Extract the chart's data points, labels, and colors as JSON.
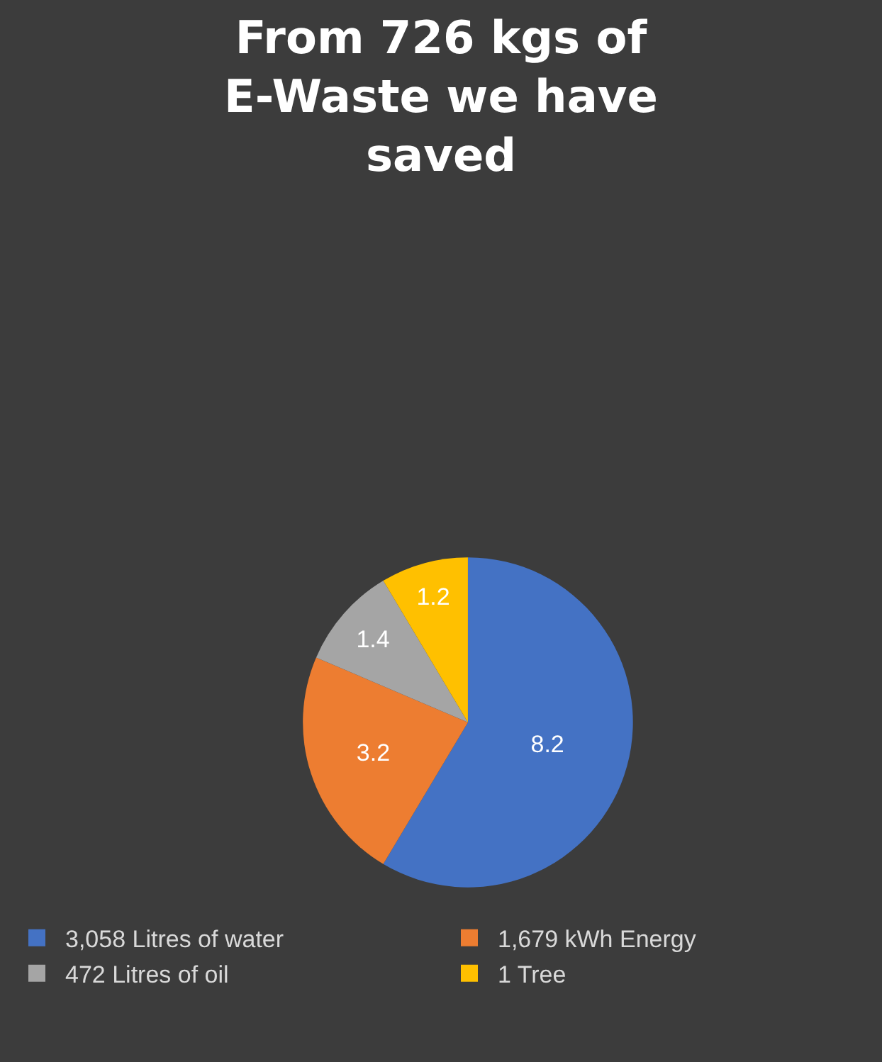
{
  "chart_data": {
    "type": "pie",
    "title": "From 726 kgs of E-Waste we have saved",
    "categories": [
      "3,058 Litres of water",
      "1,679 kWh Energy",
      "472 Litres of oil",
      "1 Tree"
    ],
    "values": [
      8.2,
      3.2,
      1.4,
      1.2
    ],
    "colors": [
      "#4472c4",
      "#ed7d31",
      "#a5a5a5",
      "#ffc000"
    ],
    "data_labels": true,
    "legend": "bottom"
  }
}
